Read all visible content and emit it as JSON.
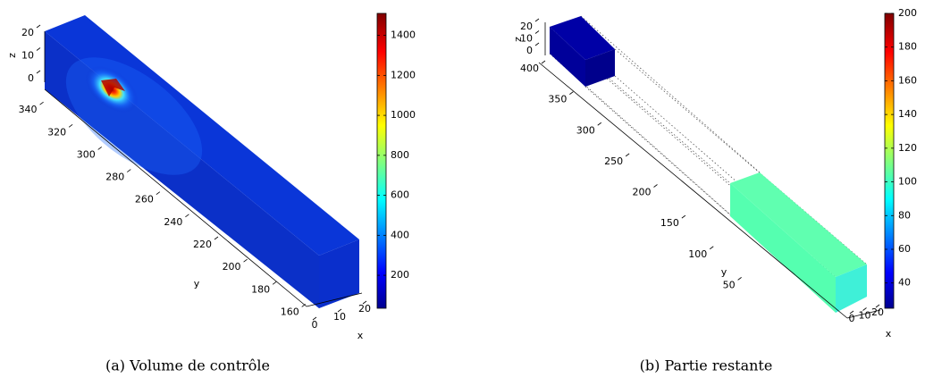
{
  "chart_data": [
    {
      "type": "volume3d",
      "caption": "(a)  Volume de contrôle",
      "xlabel": "x",
      "ylabel": "y",
      "zlabel": "z",
      "xlim": [
        0,
        20
      ],
      "xticks": [
        0,
        10,
        20
      ],
      "ylim": [
        150,
        360
      ],
      "yticks": [
        160,
        180,
        200,
        220,
        240,
        260,
        280,
        300,
        320,
        340
      ],
      "zlim": [
        0,
        20
      ],
      "zticks": [
        0,
        10,
        20
      ],
      "clim": [
        35,
        1510
      ],
      "cticks": [
        200,
        400,
        600,
        800,
        1000,
        1200,
        1400
      ]
    },
    {
      "type": "volume3d",
      "caption": "(b)  Partie restante",
      "xlabel": "x",
      "ylabel": "y",
      "zlabel": "z",
      "xlim": [
        0,
        20
      ],
      "xticks": [
        0,
        10,
        20
      ],
      "ylim": [
        0,
        400
      ],
      "yticks": [
        50,
        100,
        150,
        200,
        250,
        300,
        350,
        400
      ],
      "zlim": [
        0,
        20
      ],
      "zticks": [
        0,
        10,
        20
      ],
      "clim": [
        25,
        200
      ],
      "cticks": [
        40,
        60,
        80,
        100,
        120,
        140,
        160,
        180,
        200
      ]
    }
  ]
}
